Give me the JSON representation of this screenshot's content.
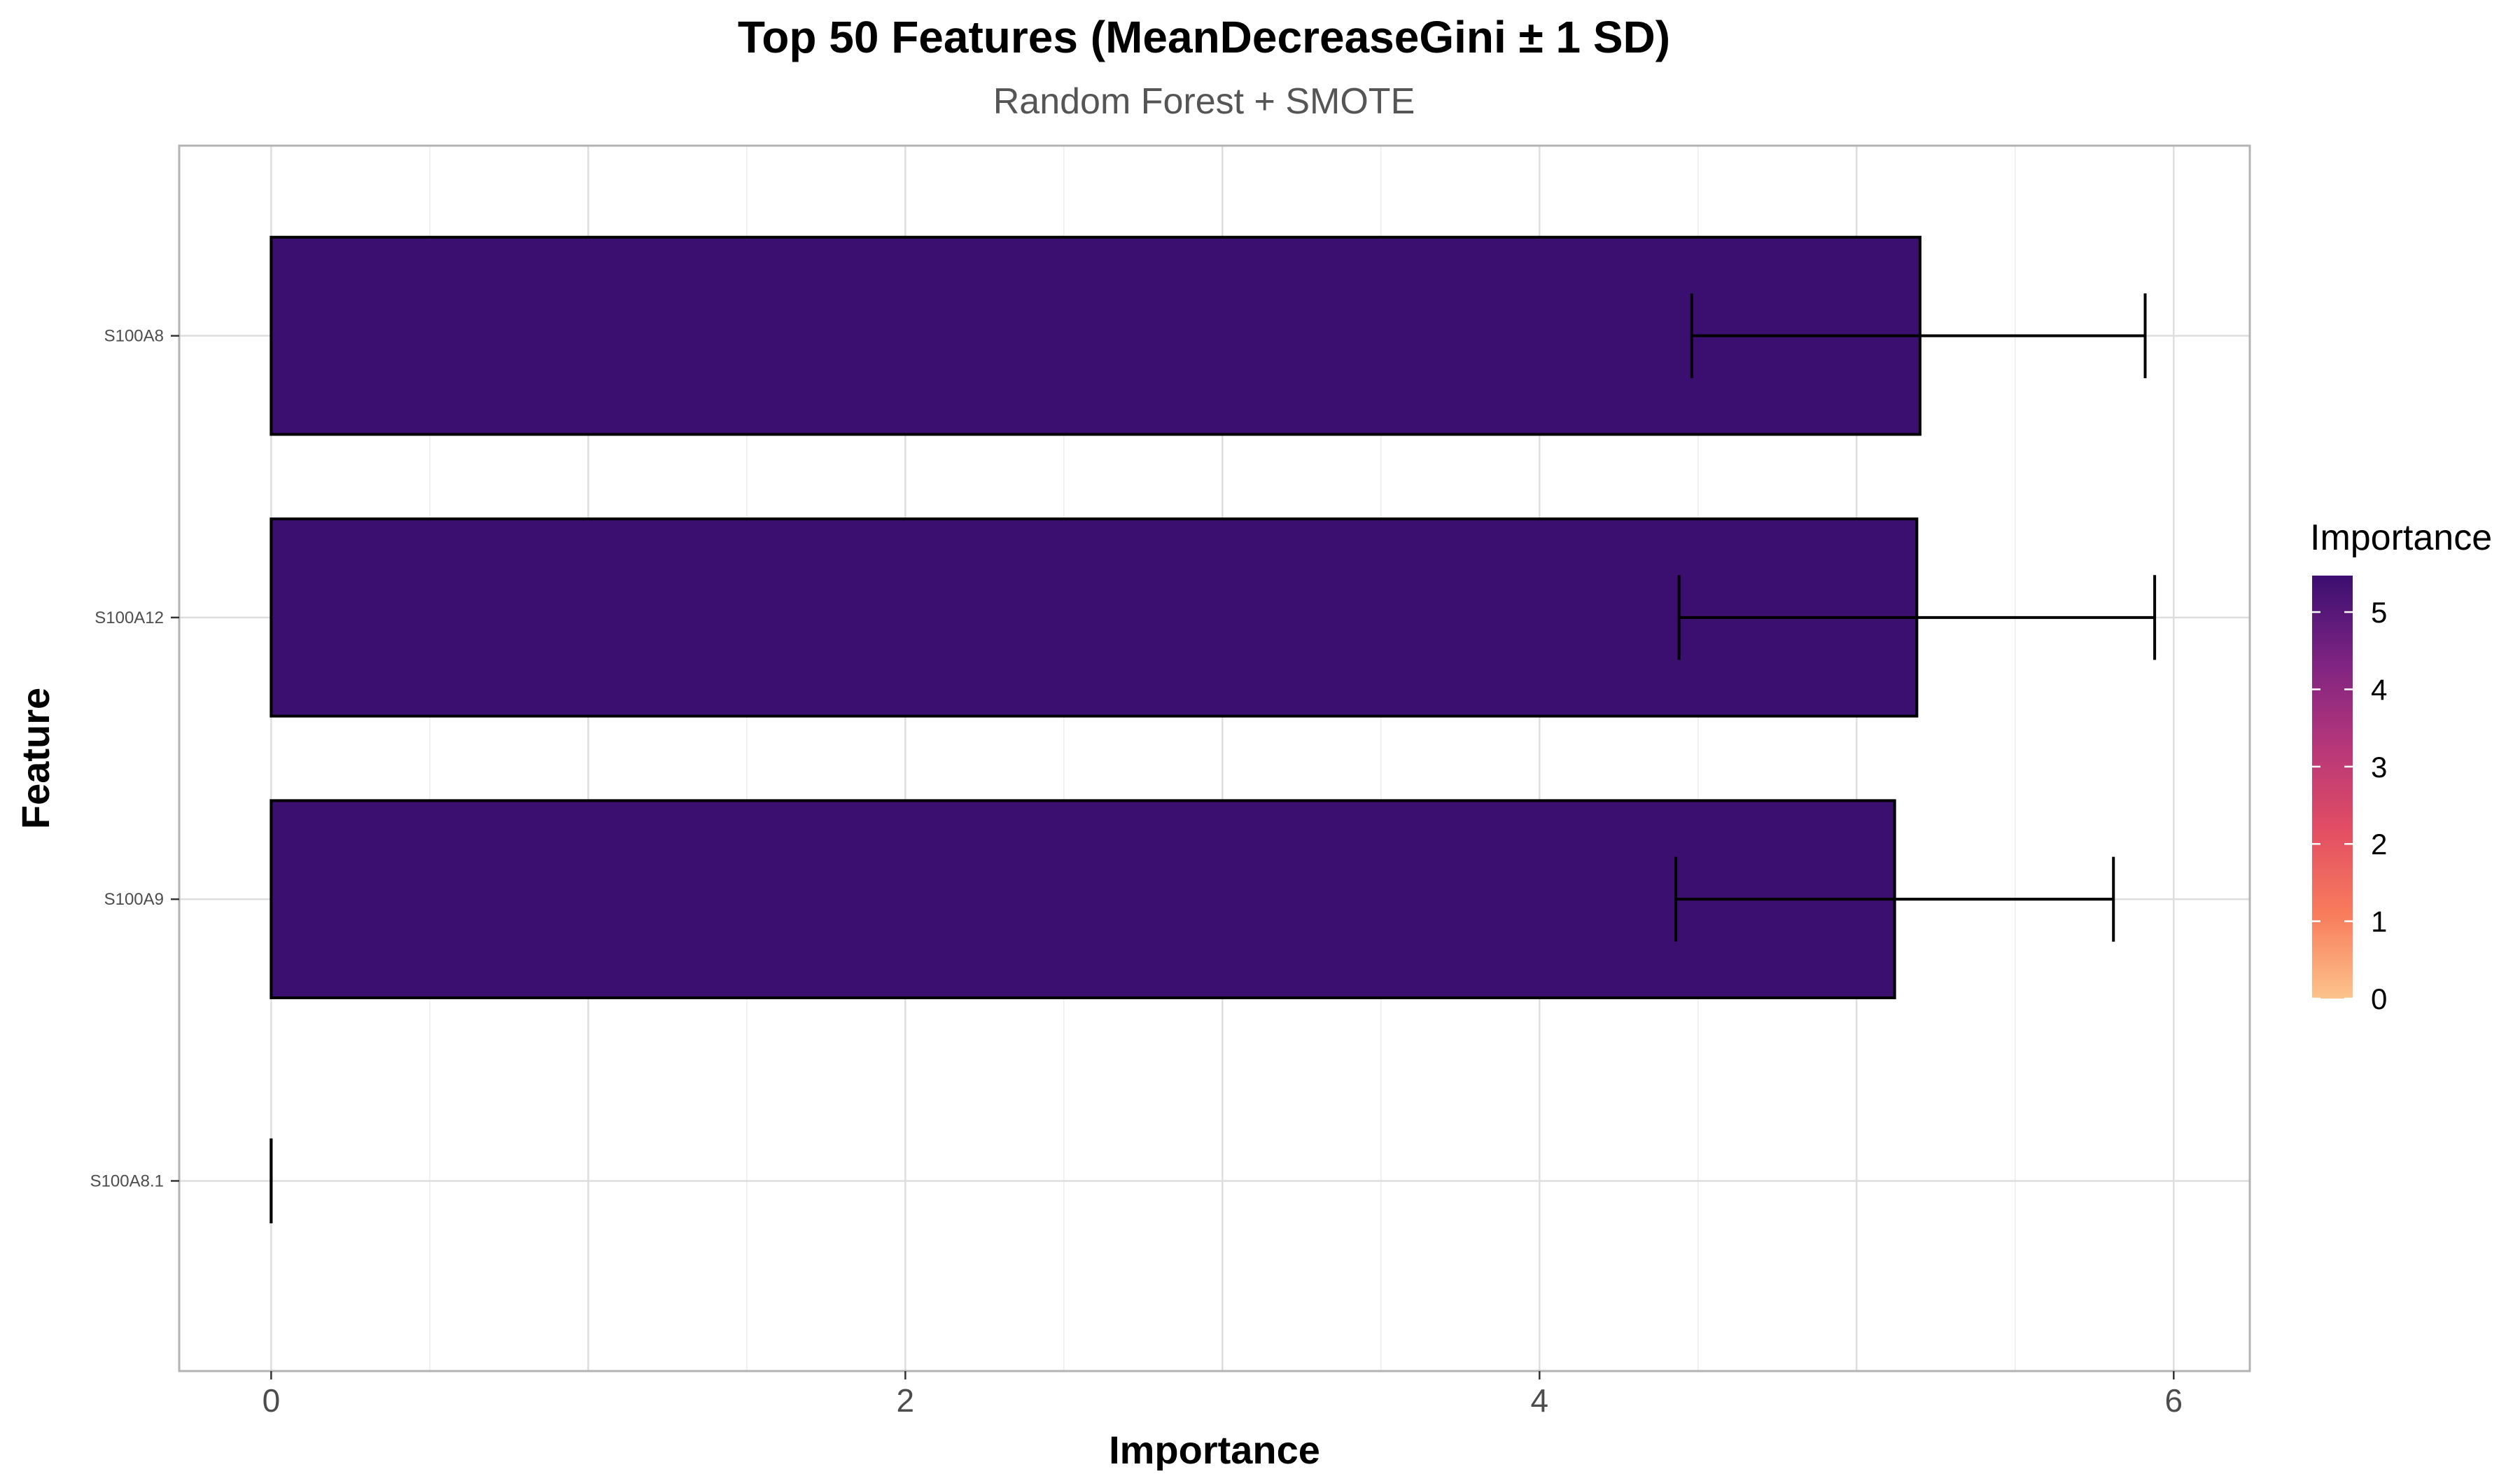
{
  "chart_data": {
    "type": "bar",
    "orientation": "horizontal",
    "title": "Top 50 Features (MeanDecreaseGini ± 1 SD)",
    "subtitle": "Random Forest + SMOTE",
    "xlabel": "Importance",
    "ylabel": "Feature",
    "categories": [
      "S100A8",
      "S100A12",
      "S100A9",
      "S100A8.1"
    ],
    "values": [
      5.2,
      5.19,
      5.12,
      0.0
    ],
    "error_low": [
      4.48,
      4.44,
      4.43,
      0.0
    ],
    "error_high": [
      5.91,
      5.94,
      5.81,
      0.0
    ],
    "xlim": [
      -0.29,
      6.24
    ],
    "xticks": [
      0,
      2,
      4,
      6
    ],
    "xtick_labels": [
      "0",
      "2",
      "4",
      "6"
    ],
    "grid": true,
    "bar_fill": "#3b0f70",
    "bar_stroke": "#000000",
    "legend": {
      "title": "Importance",
      "position": "right",
      "range": [
        0,
        5.2
      ],
      "ticks": [
        0,
        1,
        2,
        3,
        4,
        5
      ],
      "tick_labels": [
        "0",
        "1",
        "2",
        "3",
        "4",
        "5"
      ],
      "colors": [
        "#fcc38c",
        "#f87c5c",
        "#e24d63",
        "#b5367a",
        "#7c2382",
        "#3b0f70"
      ]
    }
  }
}
